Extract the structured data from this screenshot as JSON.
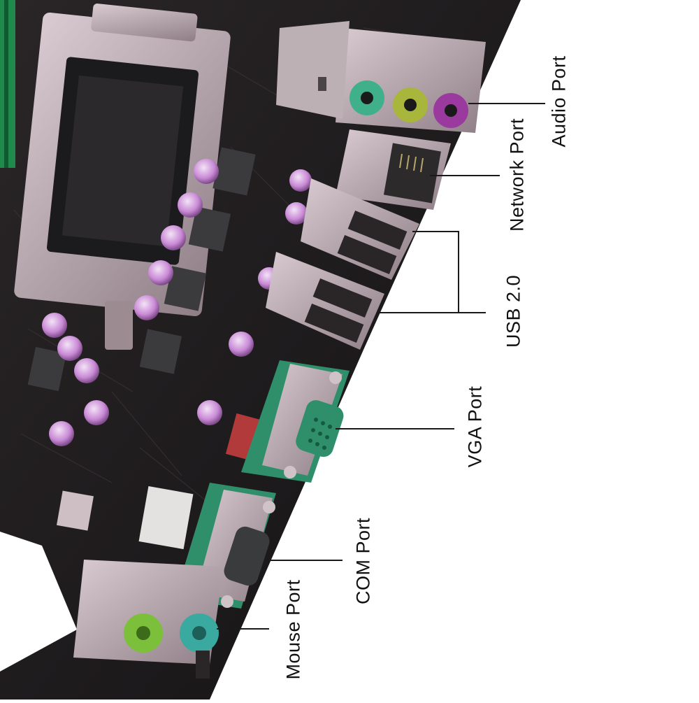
{
  "labels": {
    "audio": "Audio Port",
    "network": "Network Port",
    "usb": "USB 2.0",
    "vga": "VGA Port",
    "com": "COM Port",
    "mouse": "Mouse Port"
  },
  "colors": {
    "background": "#ffffff",
    "board": "#1e1b1d",
    "audio_green": "#3fb08a",
    "audio_lime": "#a9b63c",
    "audio_purple": "#9b3a9e",
    "vga_connector": "#2f8f6a",
    "ps2_green": "#7cbf3a",
    "ps2_teal": "#3aa9a0",
    "dimm_green": "#1f8a4c",
    "capacitor": "#c98ad6",
    "metal": "#b7a5ac"
  }
}
